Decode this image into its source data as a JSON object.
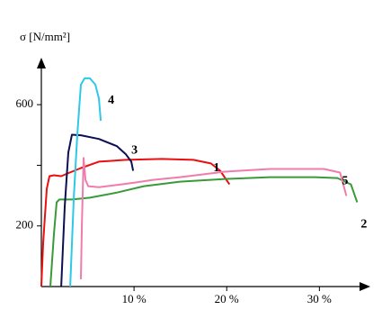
{
  "chart_data": {
    "type": "line",
    "y_label": "σ [N/mm²]",
    "xlim": [
      0,
      35.3
    ],
    "ylim": [
      0,
      755
    ],
    "xticks": [
      {
        "value": 10,
        "label": "10 %"
      },
      {
        "value": 20,
        "label": "20 %"
      },
      {
        "value": 30,
        "label": "30 %"
      }
    ],
    "yticks": [
      200,
      {
        "value": 400,
        "label": null
      },
      600
    ],
    "series": [
      {
        "name": "1",
        "color": "#e81010",
        "label_color": "#e81010",
        "x": [
          0,
          0.19,
          0.58,
          0.87,
          1.36,
          2.14,
          2.82,
          4.27,
          6.21,
          9.13,
          13.0,
          16.4,
          18.3,
          19.3,
          20.3
        ],
        "values": [
          0,
          143,
          322,
          364,
          367,
          364,
          373,
          391,
          412,
          418,
          421,
          418,
          406,
          382,
          337
        ]
      },
      {
        "name": "2",
        "color": "#3a9a3a",
        "label_color": "#2a8a2a",
        "x": [
          0.97,
          1.36,
          1.65,
          1.94,
          3.3,
          5.24,
          8.16,
          11.07,
          14.95,
          19.81,
          24.66,
          29.51,
          31.94,
          33.4,
          34.08
        ],
        "values": [
          0,
          173,
          278,
          287,
          287,
          293,
          310,
          331,
          346,
          355,
          361,
          361,
          358,
          337,
          278
        ]
      },
      {
        "name": "3",
        "color": "#0a1050",
        "label_color": "#000000",
        "x": [
          2.14,
          2.52,
          2.91,
          3.3,
          4.27,
          6.21,
          8.16,
          9.13,
          9.71,
          9.9
        ],
        "values": [
          0,
          263,
          442,
          501,
          499,
          487,
          463,
          436,
          412,
          382
        ]
      },
      {
        "name": "4",
        "color": "#2ec8e8",
        "label_color": "#1020c0",
        "x": [
          3.11,
          3.5,
          3.88,
          4.27,
          4.66,
          5.24,
          5.83,
          6.21,
          6.41
        ],
        "values": [
          0,
          293,
          501,
          666,
          687,
          687,
          666,
          621,
          547
        ]
      },
      {
        "name": "5",
        "color": "#f07cac",
        "label_color": "#800000",
        "x": [
          4.27,
          4.37,
          4.56,
          4.76,
          5.05,
          6.21,
          8.64,
          10.1,
          12.04,
          14.95,
          19.81,
          24.66,
          30.49,
          32.23,
          32.91
        ],
        "values": [
          24,
          203,
          424,
          352,
          331,
          328,
          337,
          343,
          352,
          361,
          379,
          388,
          388,
          376,
          299
        ]
      }
    ]
  }
}
